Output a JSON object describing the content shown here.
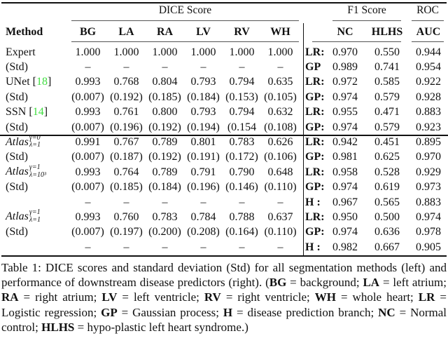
{
  "colors": {
    "citation_green": "#3fdd3f",
    "rule_black": "#111111",
    "thin_rule_gray": "#555555"
  },
  "table": {
    "header": {
      "method": "Method",
      "group_dice": "DICE Score",
      "group_f1": "F1 Score",
      "group_roc": "ROC",
      "dice_cols": [
        "BG",
        "LA",
        "RA",
        "LV",
        "RV",
        "WH"
      ],
      "f1_cols": [
        "NC",
        "HLHS"
      ],
      "roc_col": "AUC",
      "separator": "|"
    },
    "rows": [
      {
        "method": {
          "text": "Expert"
        },
        "dice": [
          "1.000",
          "1.000",
          "1.000",
          "1.000",
          "1.000",
          "1.000"
        ],
        "pred": "LR:",
        "nc": "0.970",
        "hlhs": "0.550",
        "auc": "0.944"
      },
      {
        "method": {
          "text": "(Std)"
        },
        "dice": [
          "–",
          "–",
          "–",
          "–",
          "–",
          "–"
        ],
        "pred": "GP",
        "nc": "0.989",
        "hlhs": "0.741",
        "auc": "0.954"
      },
      {
        "method": {
          "text": "UNet",
          "cite": "18"
        },
        "dice": [
          "0.993",
          "0.768",
          "0.804",
          "0.793",
          "0.794",
          "0.635"
        ],
        "pred": "LR:",
        "nc": "0.972",
        "hlhs": "0.585",
        "auc": "0.922"
      },
      {
        "method": {
          "text": "(Std)"
        },
        "dice": [
          "(0.007)",
          "(0.192)",
          "(0.185)",
          "(0.184)",
          "(0.153)",
          "(0.105)"
        ],
        "pred": "GP:",
        "nc": "0.974",
        "hlhs": "0.579",
        "auc": "0.928"
      },
      {
        "method": {
          "text": "SSN",
          "cite": "14"
        },
        "dice": [
          "0.993",
          "0.761",
          "0.800",
          "0.793",
          "0.794",
          "0.632"
        ],
        "pred": "LR:",
        "nc": "0.955",
        "hlhs": "0.471",
        "auc": "0.883"
      },
      {
        "method": {
          "text": "(Std)"
        },
        "dice": [
          "(0.007)",
          "(0.196)",
          "(0.192)",
          "(0.194)",
          "(0.154",
          "(0.108)"
        ],
        "pred": "GP:",
        "nc": "0.974",
        "hlhs": "0.579",
        "auc": "0.923"
      },
      {
        "method": {
          "text": "Atlas",
          "atlas": true,
          "sup": "γ=0",
          "sub": "λ=1"
        },
        "dice": [
          "0.991",
          "0.767",
          "0.789",
          "0.801",
          "0.783",
          "0.626"
        ],
        "pred": "LR:",
        "nc": "0.942",
        "hlhs": "0.451",
        "auc": "0.895"
      },
      {
        "method": {
          "text": "(Std)"
        },
        "dice": [
          "(0.007)",
          "(0.187)",
          "(0.192)",
          "(0.191)",
          "(0.172)",
          "(0.106)"
        ],
        "pred": "GP:",
        "nc": "0.981",
        "hlhs": "0.625",
        "auc": "0.970"
      },
      {
        "method": {
          "text": "Atlas",
          "atlas": true,
          "sup": "γ=1",
          "sub": "λ=10³"
        },
        "dice": [
          "0.993",
          "0.764",
          "0.789",
          "0.791",
          "0.790",
          "0.648"
        ],
        "pred": "LR:",
        "nc": "0.958",
        "hlhs": "0.528",
        "auc": "0.929"
      },
      {
        "method": {
          "text": "(Std)"
        },
        "dice": [
          "(0.007)",
          "(0.185)",
          "(0.184)",
          "(0.196)",
          "(0.146)",
          "(0.110)"
        ],
        "pred": "GP:",
        "nc": "0.974",
        "hlhs": "0.619",
        "auc": "0.973"
      },
      {
        "method": {
          "text": ""
        },
        "dice": [
          "–",
          "–",
          "–",
          "–",
          "–",
          "–"
        ],
        "pred": "H :",
        "nc": "0.967",
        "hlhs": "0.565",
        "auc": "0.883"
      },
      {
        "method": {
          "text": "Atlas",
          "atlas": true,
          "sup": "γ=1",
          "sub": "λ=1"
        },
        "dice": [
          "0.993",
          "0.760",
          "0.783",
          "0.784",
          "0.788",
          "0.637"
        ],
        "pred": "LR:",
        "nc": "0.950",
        "hlhs": "0.500",
        "auc": "0.974"
      },
      {
        "method": {
          "text": "(Std)"
        },
        "dice": [
          "(0.007)",
          "(0.197)",
          "(0.200)",
          "(0.208)",
          "(0.164)",
          "(0.110)"
        ],
        "pred": "GP:",
        "nc": "0.974",
        "hlhs": "0.636",
        "auc": "0.978"
      },
      {
        "method": {
          "text": ""
        },
        "dice": [
          "–",
          "–",
          "–",
          "–",
          "–",
          "–"
        ],
        "pred": "H :",
        "nc": "0.982",
        "hlhs": "0.667",
        "auc": "0.905"
      }
    ]
  },
  "caption": {
    "segments": [
      {
        "t": "Table 1: DICE scores and standard deviation (Std) for all segmentation methods (left) and performance of downstream disease predictors (right). (",
        "b": false
      },
      {
        "t": "BG",
        "b": true
      },
      {
        "t": " = background; ",
        "b": false
      },
      {
        "t": "LA",
        "b": true
      },
      {
        "t": " = left atrium; ",
        "b": false
      },
      {
        "t": "RA",
        "b": true
      },
      {
        "t": " = right atrium; ",
        "b": false
      },
      {
        "t": "LV",
        "b": true
      },
      {
        "t": " = left ventricle; ",
        "b": false
      },
      {
        "t": "RV",
        "b": true
      },
      {
        "t": " = right ventricle; ",
        "b": false
      },
      {
        "t": "WH",
        "b": true
      },
      {
        "t": " = whole heart; ",
        "b": false
      },
      {
        "t": "LR",
        "b": true
      },
      {
        "t": " = Logistic regression; ",
        "b": false
      },
      {
        "t": "GP",
        "b": true
      },
      {
        "t": " = Gaussian process; ",
        "b": false
      },
      {
        "t": "H",
        "b": true
      },
      {
        "t": " = disease prediction branch; ",
        "b": false
      },
      {
        "t": "NC",
        "b": true
      },
      {
        "t": " = Normal control; ",
        "b": false
      },
      {
        "t": "HLHS",
        "b": true
      },
      {
        "t": " = hypo-plastic left heart syndrome.)",
        "b": false
      }
    ]
  }
}
